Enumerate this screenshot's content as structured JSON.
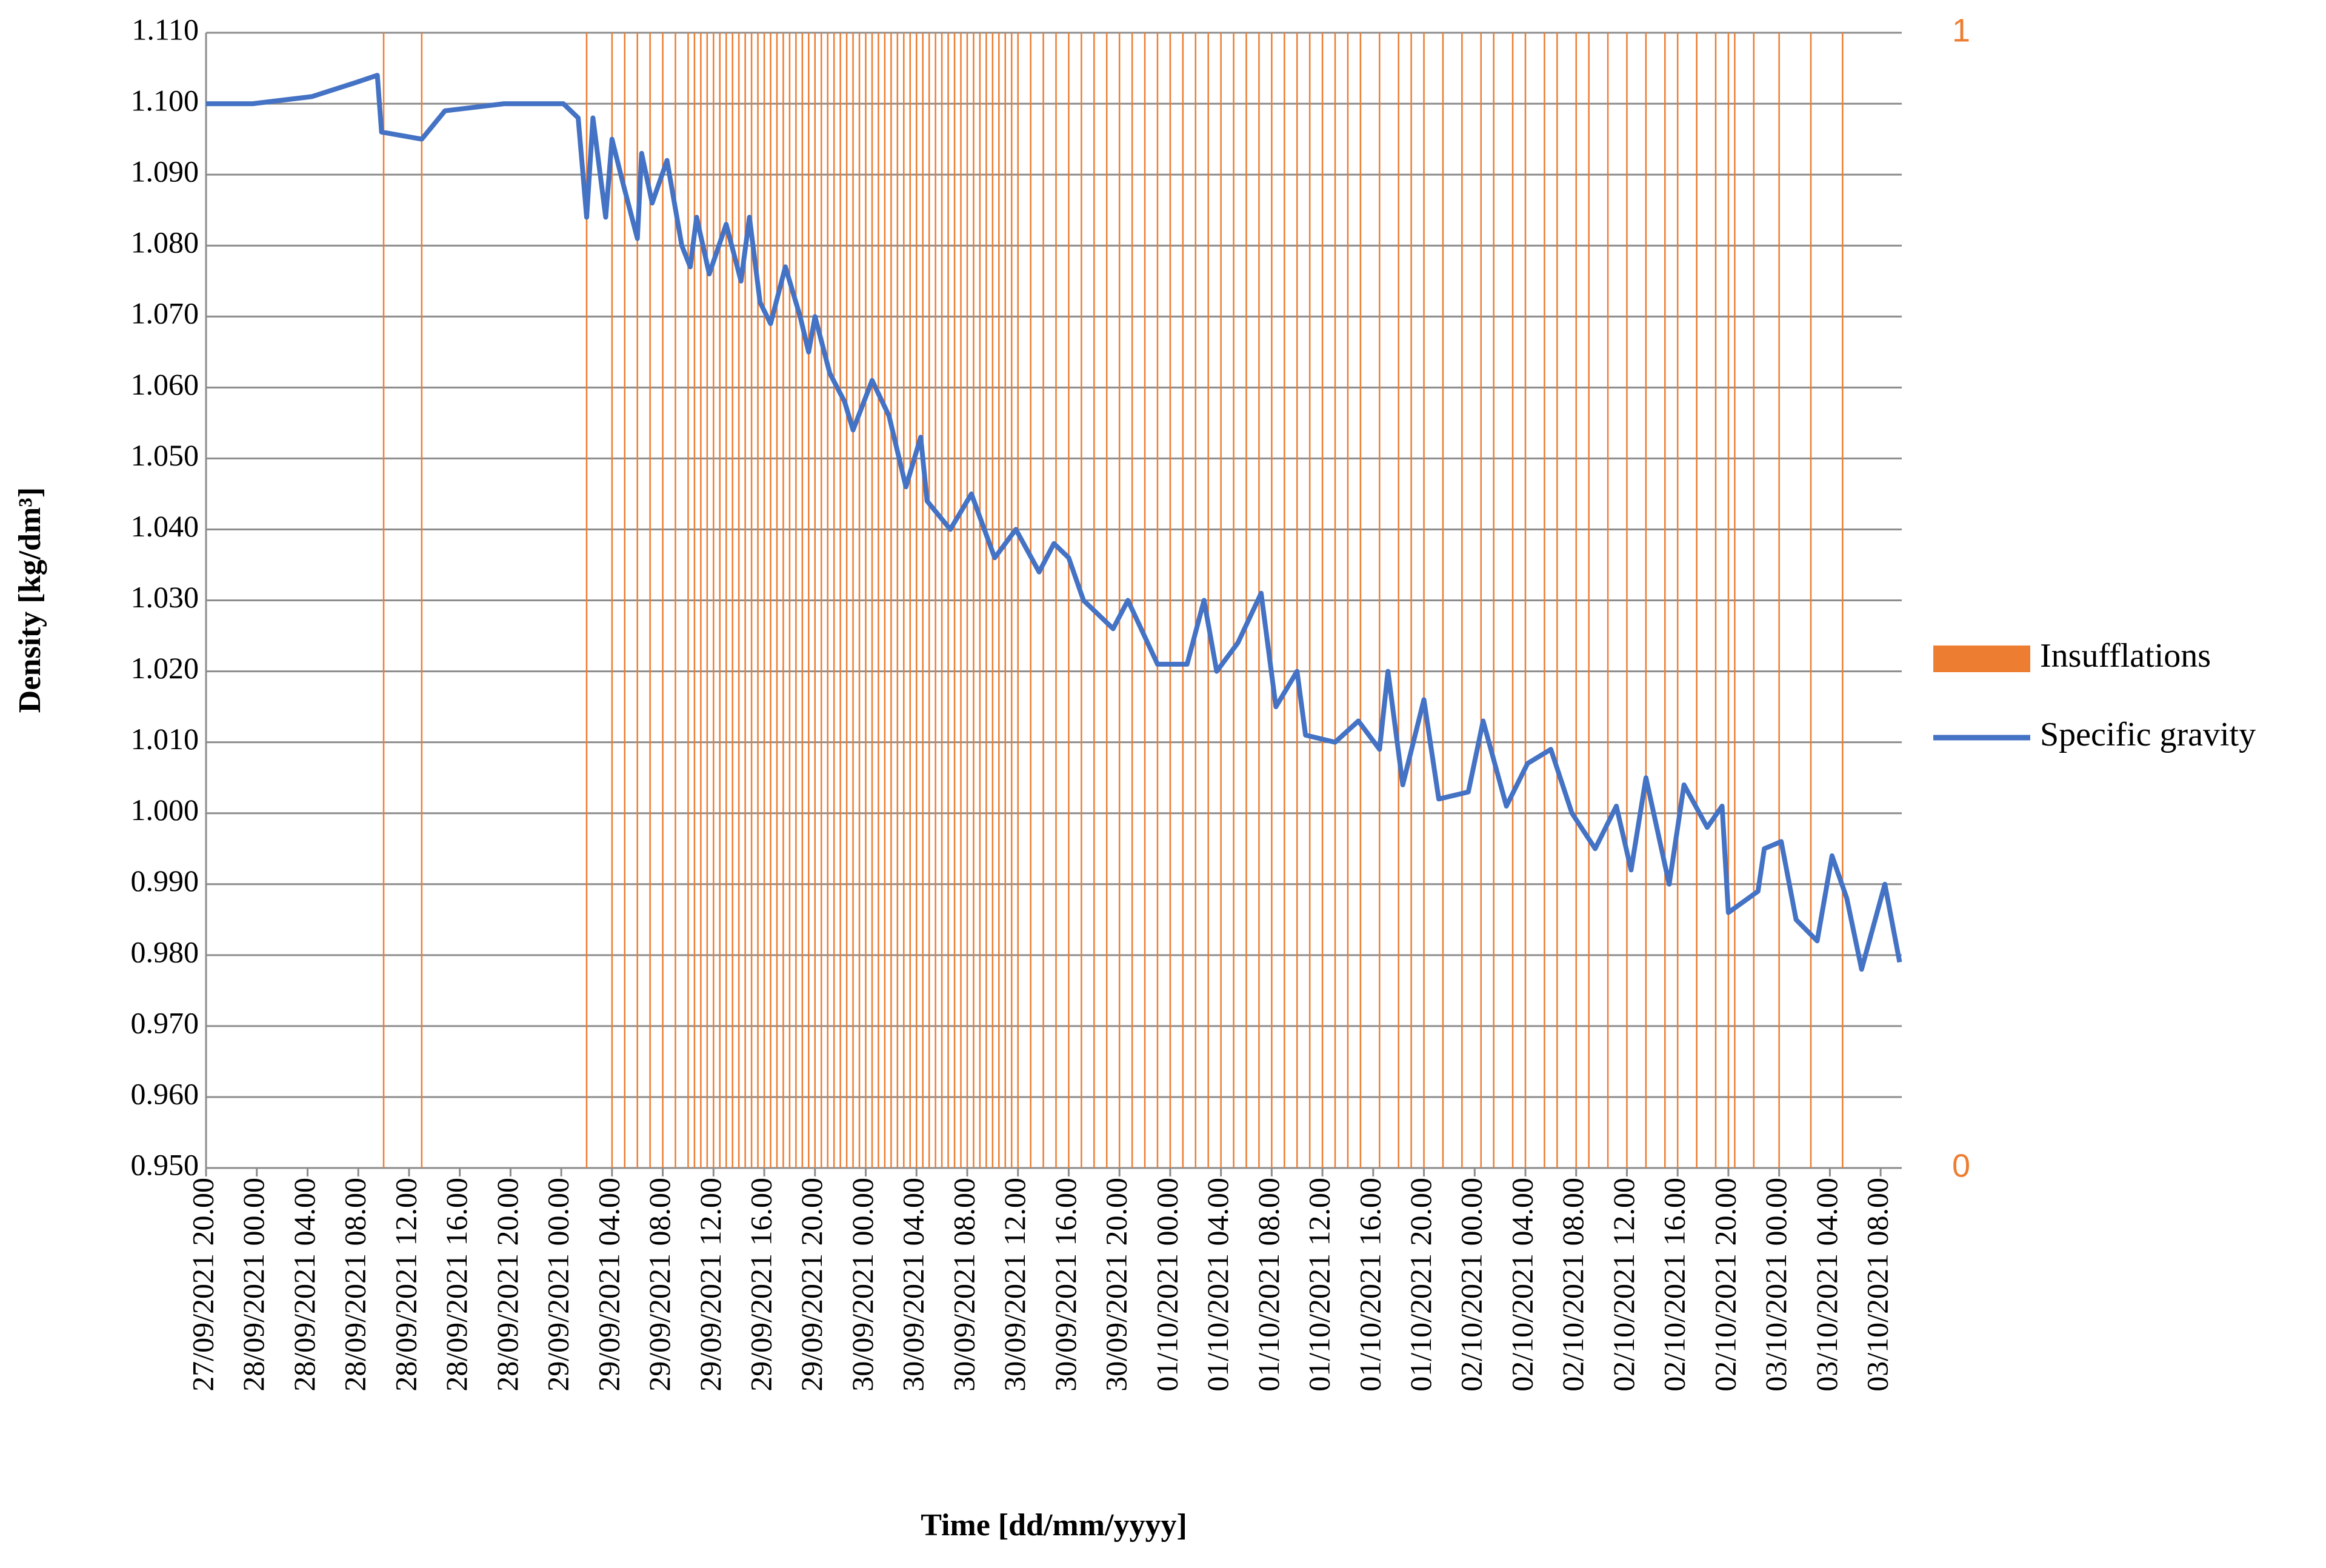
{
  "chart_data": {
    "type": "combo",
    "xlabel": "Time [dd/mm/yyyy]",
    "ylabel": "Density [kg/dm³]",
    "legend": "right",
    "grid": true,
    "xlim": [
      "27/09/2021 20.00",
      "03/10/2021 09.40"
    ],
    "xticks": [
      "27/09/2021 20.00",
      "28/09/2021 00.00",
      "28/09/2021 04.00",
      "28/09/2021 08.00",
      "28/09/2021 12.00",
      "28/09/2021 16.00",
      "28/09/2021 20.00",
      "29/09/2021 00.00",
      "29/09/2021 04.00",
      "29/09/2021 08.00",
      "29/09/2021 12.00",
      "29/09/2021 16.00",
      "29/09/2021 20.00",
      "30/09/2021 00.00",
      "30/09/2021 04.00",
      "30/09/2021 08.00",
      "30/09/2021 12.00",
      "30/09/2021 16.00",
      "30/09/2021 20.00",
      "01/10/2021 00.00",
      "01/10/2021 04.00",
      "01/10/2021 08.00",
      "01/10/2021 12.00",
      "01/10/2021 16.00",
      "01/10/2021 20.00",
      "02/10/2021 00.00",
      "02/10/2021 04.00",
      "02/10/2021 08.00",
      "02/10/2021 12.00",
      "02/10/2021 16.00",
      "02/10/2021 20.00",
      "03/10/2021 00.00",
      "03/10/2021 04.00",
      "03/10/2021 08.00"
    ],
    "ylim": [
      0.95,
      1.11
    ],
    "yticks": [
      {
        "value": 0.95,
        "label": "0.950"
      },
      {
        "value": 0.96,
        "label": "0.960"
      },
      {
        "value": 0.97,
        "label": "0.970"
      },
      {
        "value": 0.98,
        "label": "0.980"
      },
      {
        "value": 0.99,
        "label": "0.990"
      },
      {
        "value": 1.0,
        "label": "1.000"
      },
      {
        "value": 1.01,
        "label": "1.010"
      },
      {
        "value": 1.02,
        "label": "1.020"
      },
      {
        "value": 1.03,
        "label": "1.030"
      },
      {
        "value": 1.04,
        "label": "1.040"
      },
      {
        "value": 1.05,
        "label": "1.050"
      },
      {
        "value": 1.06,
        "label": "1.060"
      },
      {
        "value": 1.07,
        "label": "1.070"
      },
      {
        "value": 1.08,
        "label": "1.080"
      },
      {
        "value": 1.09,
        "label": "1.090"
      },
      {
        "value": 1.1,
        "label": "1.100"
      },
      {
        "value": 1.11,
        "label": "1.110"
      }
    ],
    "y2lim": [
      0,
      1
    ],
    "y2ticks": [
      0,
      1
    ],
    "series": [
      {
        "name": "Insufflations",
        "type": "bar",
        "axis": "y2",
        "color": "#ed7d31",
        "x": [
          "28/09/2021 10.00",
          "28/09/2021 13.00",
          "29/09/2021 02.00",
          "29/09/2021 04.00",
          "29/09/2021 05.00",
          "29/09/2021 06.00",
          "29/09/2021 07.00",
          "29/09/2021 08.00",
          "29/09/2021 09.00",
          "29/09/2021 10.00",
          "29/09/2021 10.30",
          "29/09/2021 11.00",
          "29/09/2021 11.30",
          "29/09/2021 12.00",
          "29/09/2021 12.30",
          "29/09/2021 13.00",
          "29/09/2021 13.30",
          "29/09/2021 14.00",
          "29/09/2021 14.30",
          "29/09/2021 15.00",
          "29/09/2021 15.30",
          "29/09/2021 16.00",
          "29/09/2021 16.30",
          "29/09/2021 17.00",
          "29/09/2021 17.30",
          "29/09/2021 18.00",
          "29/09/2021 18.30",
          "29/09/2021 19.00",
          "29/09/2021 19.30",
          "29/09/2021 20.00",
          "29/09/2021 20.30",
          "29/09/2021 21.00",
          "29/09/2021 21.30",
          "29/09/2021 22.00",
          "29/09/2021 22.30",
          "29/09/2021 23.00",
          "29/09/2021 23.30",
          "30/09/2021 00.00",
          "30/09/2021 00.30",
          "30/09/2021 01.00",
          "30/09/2021 01.30",
          "30/09/2021 02.00",
          "30/09/2021 02.30",
          "30/09/2021 03.00",
          "30/09/2021 03.30",
          "30/09/2021 04.00",
          "30/09/2021 04.30",
          "30/09/2021 05.00",
          "30/09/2021 05.30",
          "30/09/2021 06.00",
          "30/09/2021 06.30",
          "30/09/2021 07.00",
          "30/09/2021 07.30",
          "30/09/2021 08.00",
          "30/09/2021 08.30",
          "30/09/2021 09.00",
          "30/09/2021 09.30",
          "30/09/2021 10.00",
          "30/09/2021 10.30",
          "30/09/2021 11.00",
          "30/09/2021 11.30",
          "30/09/2021 12.00",
          "30/09/2021 13.00",
          "30/09/2021 14.00",
          "30/09/2021 15.00",
          "30/09/2021 16.00",
          "30/09/2021 17.00",
          "30/09/2021 18.00",
          "30/09/2021 19.00",
          "30/09/2021 20.00",
          "30/09/2021 21.00",
          "30/09/2021 22.00",
          "30/09/2021 23.00",
          "01/10/2021 00.00",
          "01/10/2021 01.00",
          "01/10/2021 02.00",
          "01/10/2021 03.00",
          "01/10/2021 04.00",
          "01/10/2021 05.00",
          "01/10/2021 06.00",
          "01/10/2021 07.00",
          "01/10/2021 08.00",
          "01/10/2021 09.00",
          "01/10/2021 10.00",
          "01/10/2021 11.00",
          "01/10/2021 12.00",
          "01/10/2021 13.00",
          "01/10/2021 14.00",
          "01/10/2021 15.00",
          "01/10/2021 16.30",
          "01/10/2021 18.00",
          "01/10/2021 19.00",
          "01/10/2021 20.00",
          "01/10/2021 21.30",
          "01/10/2021 23.00",
          "02/10/2021 00.30",
          "02/10/2021 01.30",
          "02/10/2021 03.00",
          "02/10/2021 04.00",
          "02/10/2021 05.30",
          "02/10/2021 06.30",
          "02/10/2021 08.00",
          "02/10/2021 09.00",
          "02/10/2021 10.30",
          "02/10/2021 12.00",
          "02/10/2021 13.30",
          "02/10/2021 15.00",
          "02/10/2021 16.00",
          "02/10/2021 17.30",
          "02/10/2021 19.00",
          "02/10/2021 20.00",
          "02/10/2021 20.30",
          "02/10/2021 22.00",
          "03/10/2021 00.00",
          "03/10/2021 02.30",
          "03/10/2021 05.00"
        ],
        "values": [
          1,
          1,
          1,
          1,
          1,
          1,
          1,
          1,
          1,
          1,
          1,
          1,
          1,
          1,
          1,
          1,
          1,
          1,
          1,
          1,
          1,
          1,
          1,
          1,
          1,
          1,
          1,
          1,
          1,
          1,
          1,
          1,
          1,
          1,
          1,
          1,
          1,
          1,
          1,
          1,
          1,
          1,
          1,
          1,
          1,
          1,
          1,
          1,
          1,
          1,
          1,
          1,
          1,
          1,
          1,
          1,
          1,
          1,
          1,
          1,
          1,
          1,
          1,
          1,
          1,
          1,
          1,
          1,
          1,
          1,
          1,
          1,
          1,
          1,
          1,
          1,
          1,
          1,
          1,
          1,
          1,
          1,
          1,
          1,
          1,
          1,
          1,
          1,
          1,
          1,
          1,
          1,
          1,
          1,
          1,
          1,
          1,
          1,
          1,
          1,
          1,
          1,
          1,
          1,
          1,
          1,
          1,
          1,
          1,
          1,
          1,
          1,
          1,
          1,
          1,
          1
        ]
      },
      {
        "name": "Specific gravity",
        "type": "line",
        "color": "#4472c4",
        "x": [
          "27/09/2021 20.00",
          "27/09/2021 23.40",
          "28/09/2021 04.20",
          "28/09/2021 07.50",
          "28/09/2021 09.30",
          "28/09/2021 09.50",
          "28/09/2021 13.00",
          "28/09/2021 14.50",
          "28/09/2021 19.30",
          "29/09/2021 00.10",
          "29/09/2021 01.20",
          "29/09/2021 02.00",
          "29/09/2021 02.30",
          "29/09/2021 03.30",
          "29/09/2021 04.00",
          "29/09/2021 04.50",
          "29/09/2021 06.00",
          "29/09/2021 06.20",
          "29/09/2021 07.10",
          "29/09/2021 08.20",
          "29/09/2021 09.30",
          "29/09/2021 10.10",
          "29/09/2021 10.40",
          "29/09/2021 11.40",
          "29/09/2021 13.00",
          "29/09/2021 14.10",
          "29/09/2021 14.50",
          "29/09/2021 15.40",
          "29/09/2021 16.30",
          "29/09/2021 17.40",
          "29/09/2021 18.50",
          "29/09/2021 19.30",
          "29/09/2021 20.00",
          "29/09/2021 21.10",
          "29/09/2021 22.20",
          "29/09/2021 23.00",
          "30/09/2021 00.30",
          "30/09/2021 01.50",
          "30/09/2021 03.10",
          "30/09/2021 04.20",
          "30/09/2021 04.50",
          "30/09/2021 06.40",
          "30/09/2021 08.20",
          "30/09/2021 10.10",
          "30/09/2021 11.50",
          "30/09/2021 13.40",
          "30/09/2021 14.50",
          "30/09/2021 16.00",
          "30/09/2021 17.10",
          "30/09/2021 19.30",
          "30/09/2021 20.40",
          "30/09/2021 23.00",
          "01/10/2021 01.20",
          "01/10/2021 02.40",
          "01/10/2021 03.40",
          "01/10/2021 05.20",
          "01/10/2021 07.10",
          "01/10/2021 08.20",
          "01/10/2021 10.00",
          "01/10/2021 10.40",
          "01/10/2021 13.00",
          "01/10/2021 14.50",
          "01/10/2021 16.30",
          "01/10/2021 17.10",
          "01/10/2021 18.20",
          "01/10/2021 20.00",
          "01/10/2021 21.10",
          "01/10/2021 23.30",
          "02/10/2021 00.40",
          "02/10/2021 02.30",
          "02/10/2021 04.10",
          "02/10/2021 06.00",
          "02/10/2021 07.40",
          "02/10/2021 09.30",
          "02/10/2021 11.10",
          "02/10/2021 12.20",
          "02/10/2021 13.30",
          "02/10/2021 15.20",
          "02/10/2021 16.30",
          "02/10/2021 18.20",
          "02/10/2021 19.30",
          "02/10/2021 20.00",
          "02/10/2021 22.20",
          "02/10/2021 22.50",
          "03/10/2021 00.10",
          "03/10/2021 01.20",
          "03/10/2021 03.00",
          "03/10/2021 04.10",
          "03/10/2021 05.20",
          "03/10/2021 06.30",
          "03/10/2021 08.20",
          "03/10/2021 09.30"
        ],
        "values": [
          1.1,
          1.1,
          1.101,
          1.103,
          1.104,
          1.096,
          1.095,
          1.099,
          1.1,
          1.1,
          1.098,
          1.084,
          1.098,
          1.084,
          1.095,
          1.089,
          1.081,
          1.093,
          1.086,
          1.092,
          1.08,
          1.077,
          1.084,
          1.076,
          1.083,
          1.075,
          1.084,
          1.072,
          1.069,
          1.077,
          1.07,
          1.065,
          1.07,
          1.062,
          1.058,
          1.054,
          1.061,
          1.056,
          1.046,
          1.053,
          1.044,
          1.04,
          1.045,
          1.036,
          1.04,
          1.034,
          1.038,
          1.036,
          1.03,
          1.026,
          1.03,
          1.021,
          1.021,
          1.03,
          1.02,
          1.024,
          1.031,
          1.015,
          1.02,
          1.011,
          1.01,
          1.013,
          1.009,
          1.02,
          1.004,
          1.016,
          1.002,
          1.003,
          1.013,
          1.001,
          1.007,
          1.009,
          1.0,
          0.995,
          1.001,
          0.992,
          1.005,
          0.99,
          1.004,
          0.998,
          1.001,
          0.986,
          0.989,
          0.995,
          0.996,
          0.985,
          0.982,
          0.994,
          0.988,
          0.978,
          0.99,
          0.979
        ]
      }
    ]
  }
}
